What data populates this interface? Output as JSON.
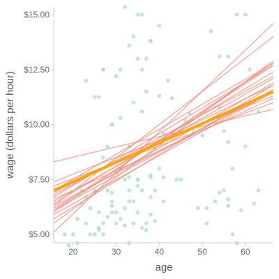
{
  "chart_data": {
    "type": "scatter",
    "title": "",
    "xlabel": "age",
    "ylabel": "wage (dollars per hour)",
    "xlim": [
      15.5,
      66.5
    ],
    "ylim": [
      4.62,
      15.35
    ],
    "x_ticks": [
      20,
      30,
      40,
      50,
      60
    ],
    "x_tick_labels": [
      "20",
      "30",
      "40",
      "50",
      "60"
    ],
    "y_ticks": [
      5.0,
      7.5,
      10.0,
      12.5,
      15.0
    ],
    "y_tick_labels": [
      "$5.00",
      "$7.50",
      "$10.00",
      "$12.50",
      "$15.00"
    ],
    "grid": false,
    "legend": "none",
    "colors": {
      "points": "#a8dcc8",
      "bootstrap_lines": "#f5877a",
      "fit_line": "#ffa500",
      "axis": "#cccccc"
    },
    "points": [
      [
        18,
        5.0
      ],
      [
        19,
        4.5
      ],
      [
        20,
        5.0
      ],
      [
        21,
        4.6
      ],
      [
        21,
        5.7
      ],
      [
        22,
        6.4
      ],
      [
        22,
        7.0
      ],
      [
        23,
        12.0
      ],
      [
        23,
        6.7
      ],
      [
        23,
        5.5
      ],
      [
        24,
        6.2
      ],
      [
        24,
        5.0
      ],
      [
        25,
        11.25
      ],
      [
        25,
        7.0
      ],
      [
        25,
        6.9
      ],
      [
        25,
        5.0
      ],
      [
        26,
        11.25
      ],
      [
        26,
        6.0
      ],
      [
        26,
        5.3
      ],
      [
        26,
        5.2
      ],
      [
        27,
        12.5
      ],
      [
        27,
        12.5
      ],
      [
        27,
        8.5
      ],
      [
        27,
        5.5
      ],
      [
        27,
        5.0
      ],
      [
        28,
        9.0
      ],
      [
        28,
        7.0
      ],
      [
        28,
        5.8
      ],
      [
        29,
        10.0
      ],
      [
        29,
        10.0
      ],
      [
        29,
        6.9
      ],
      [
        29,
        6.5
      ],
      [
        29,
        6.0
      ],
      [
        29,
        6.3
      ],
      [
        30,
        12.2
      ],
      [
        30,
        7.8
      ],
      [
        30,
        6.0
      ],
      [
        30,
        5.5
      ],
      [
        31,
        10.3
      ],
      [
        31,
        12.5
      ],
      [
        31,
        8.0
      ],
      [
        31,
        5.7
      ],
      [
        32,
        6.2
      ],
      [
        32,
        5.4
      ],
      [
        32,
        7.5
      ],
      [
        32,
        15.35
      ],
      [
        33,
        13.6
      ],
      [
        33,
        9.0
      ],
      [
        33,
        7.6
      ],
      [
        33,
        7.0
      ],
      [
        33,
        6.5
      ],
      [
        33,
        4.6
      ],
      [
        34,
        14.0
      ],
      [
        34,
        11.0
      ],
      [
        34,
        8.2
      ],
      [
        34,
        6.5
      ],
      [
        34,
        5.5
      ],
      [
        35,
        15.0
      ],
      [
        35,
        13.0
      ],
      [
        35,
        7.5
      ],
      [
        35,
        7.5
      ],
      [
        35,
        7.2
      ],
      [
        35,
        6.0
      ],
      [
        36,
        15.0
      ],
      [
        36,
        12.5
      ],
      [
        36,
        10.6
      ],
      [
        36,
        8.9
      ],
      [
        36,
        7.0
      ],
      [
        36,
        5.3
      ],
      [
        37,
        13.0
      ],
      [
        37,
        11.5
      ],
      [
        37,
        5.5
      ],
      [
        37,
        5.2
      ],
      [
        38,
        13.8
      ],
      [
        38,
        13.8
      ],
      [
        38,
        7.7
      ],
      [
        38,
        7.6
      ],
      [
        38,
        6.7
      ],
      [
        38,
        5.9
      ],
      [
        39,
        8.9
      ],
      [
        39,
        7.0
      ],
      [
        39,
        5.6
      ],
      [
        40,
        14.5
      ],
      [
        40,
        11.3
      ],
      [
        40,
        8.0
      ],
      [
        41,
        9.6
      ],
      [
        41,
        7.6
      ],
      [
        41,
        6.5
      ],
      [
        42,
        12.0
      ],
      [
        43,
        11.2
      ],
      [
        44,
        7.5
      ],
      [
        45,
        7.5
      ],
      [
        46,
        10.2
      ],
      [
        47,
        10.5
      ],
      [
        48,
        9.7
      ],
      [
        49,
        6.2
      ],
      [
        50,
        9.5
      ],
      [
        51,
        6.2
      ],
      [
        51,
        5.5
      ],
      [
        52,
        14.25
      ],
      [
        53,
        6.5
      ],
      [
        54,
        13.1
      ],
      [
        54,
        10.8
      ],
      [
        54,
        6.9
      ],
      [
        55,
        7.0
      ],
      [
        55,
        9.7
      ],
      [
        56,
        13.1
      ],
      [
        56,
        9.2
      ],
      [
        56,
        6.3
      ],
      [
        56,
        6.6
      ],
      [
        57,
        8.0
      ],
      [
        57,
        5.0
      ],
      [
        58,
        15.0
      ],
      [
        58,
        4.6
      ],
      [
        59,
        6.1
      ],
      [
        60,
        15.0
      ],
      [
        60,
        9.0
      ],
      [
        61,
        12.5
      ],
      [
        62,
        6.4
      ],
      [
        63,
        7.0
      ],
      [
        63,
        10.6
      ]
    ],
    "bootstrap_lines": [
      [
        5.7,
        11.8
      ],
      [
        6.2,
        11.9
      ],
      [
        6.5,
        12.1
      ],
      [
        5.1,
        14.6
      ],
      [
        6.0,
        12.8
      ],
      [
        6.1,
        11.6
      ],
      [
        6.6,
        11.2
      ],
      [
        6.3,
        11.5
      ],
      [
        6.8,
        12.2
      ],
      [
        7.0,
        12.8
      ],
      [
        7.2,
        11.0
      ],
      [
        6.9,
        11.8
      ],
      [
        5.5,
        12.9
      ],
      [
        8.3,
        10.7
      ],
      [
        6.3,
        14.0
      ],
      [
        6.7,
        12.7
      ],
      [
        5.9,
        11.5
      ],
      [
        7.4,
        11.3
      ],
      [
        6.4,
        12.4
      ],
      [
        6.1,
        12.7
      ]
    ],
    "bootstrap_x": [
      15.5,
      66.5
    ],
    "fit_line": [
      [
        15.5,
        7.0
      ],
      [
        66.5,
        11.5
      ]
    ]
  }
}
